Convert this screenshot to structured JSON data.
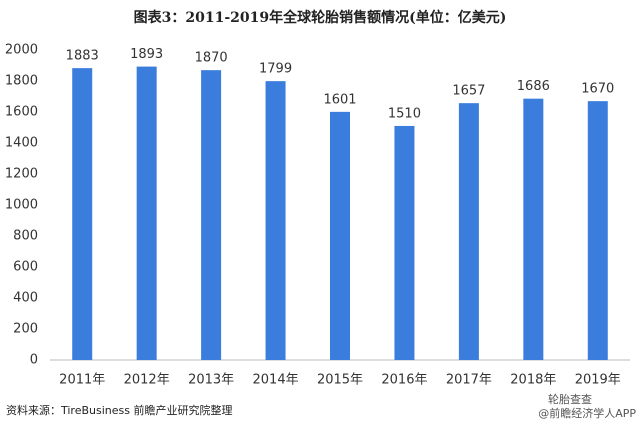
{
  "chart_data": {
    "type": "bar",
    "title": "图表3：2011-2019年全球轮胎销售额情况(单位：亿美元)",
    "categories": [
      "2011年",
      "2012年",
      "2013年",
      "2014年",
      "2015年",
      "2016年",
      "2017年",
      "2018年",
      "2019年"
    ],
    "values": [
      1883,
      1893,
      1870,
      1799,
      1601,
      1510,
      1657,
      1686,
      1670
    ],
    "color": "#3b7ddd",
    "ylim": [
      0,
      2000
    ],
    "yticks": [
      0,
      200,
      400,
      600,
      800,
      1000,
      1200,
      1400,
      1600,
      1800,
      2000
    ],
    "grid": false,
    "source": "资料来源：TireBusiness 前瞻产业研究院整理",
    "annotations": [
      "轮胎查查",
      "@前瞻经济学人APP"
    ]
  }
}
